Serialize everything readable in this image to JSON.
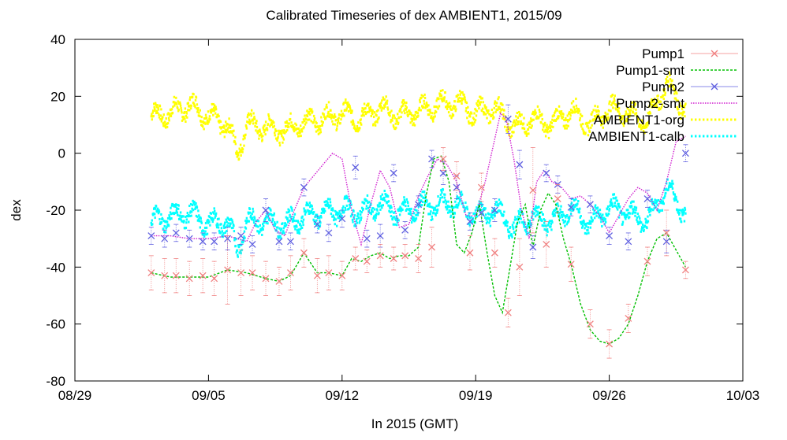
{
  "chart_data": {
    "type": "line",
    "title": "Calibrated Timeseries of dex AMBIENT1, 2015/09",
    "xlabel": "In 2015 (GMT)",
    "ylabel": "dex",
    "xlim": [
      "08/29",
      "10/03"
    ],
    "ylim": [
      -80,
      40
    ],
    "x_ticks": [
      "08/29",
      "09/05",
      "09/12",
      "09/19",
      "09/26",
      "10/03"
    ],
    "y_ticks": [
      -80,
      -60,
      -40,
      -20,
      0,
      20,
      40
    ],
    "grid": false,
    "legend_position": "top-right",
    "series": [
      {
        "name": "Pump1",
        "style": "points-with-errorbars",
        "marker": "x",
        "color": "#f08080",
        "x": [
          "09/02",
          "09/02.7",
          "09/03.3",
          "09/04",
          "09/04.7",
          "09/05.3",
          "09/06",
          "09/06.7",
          "09/07.3",
          "09/08",
          "09/08.7",
          "09/09.3",
          "09/10",
          "09/10.7",
          "09/11.3",
          "09/12",
          "09/12.7",
          "09/13.3",
          "09/14",
          "09/14.7",
          "09/15.3",
          "09/16",
          "09/16.7",
          "09/17.3",
          "09/18",
          "09/18.7",
          "09/19.3",
          "09/20",
          "09/20.7",
          "09/21.3",
          "09/22",
          "09/22.7",
          "09/23.3",
          "09/24",
          "09/25",
          "09/26",
          "09/27",
          "09/28",
          "09/29",
          "09/30"
        ],
        "values": [
          -42,
          -43,
          -43,
          -44,
          -43,
          -44,
          -41,
          -42,
          -42,
          -44,
          -45,
          -42,
          -35,
          -43,
          -42,
          -43,
          -37,
          -38,
          -36,
          -37,
          -36,
          -37,
          -33,
          -2,
          -8,
          -35,
          -12,
          -35,
          -56,
          -40,
          -13,
          -32,
          -16,
          -39,
          -60,
          -67,
          -58,
          -38,
          -28,
          -41
        ],
        "errors": [
          6,
          6,
          6,
          6,
          6,
          6,
          12,
          8,
          6,
          6,
          5,
          6,
          5,
          6,
          6,
          5,
          4,
          4,
          4,
          4,
          4,
          5,
          7,
          4,
          5,
          6,
          5,
          5,
          5,
          10,
          15,
          8,
          5,
          6,
          5,
          5,
          5,
          5,
          8,
          3
        ]
      },
      {
        "name": "Pump1-smt",
        "style": "dashed-line",
        "color": "#00c000",
        "x": [
          "09/02",
          "09/03",
          "09/04",
          "09/05",
          "09/06",
          "09/07",
          "09/08",
          "09/08.7",
          "09/09.3",
          "09/10",
          "09/10.7",
          "09/11.3",
          "09/12",
          "09/12.5",
          "09/13",
          "09/13.5",
          "09/14",
          "09/14.5",
          "09/15",
          "09/15.5",
          "09/16",
          "09/16.4",
          "09/16.8",
          "09/17.2",
          "09/17.6",
          "09/18",
          "09/18.4",
          "09/18.8",
          "09/19.2",
          "09/19.6",
          "09/20",
          "09/20.4",
          "09/20.8",
          "09/21.2",
          "09/21.6",
          "09/22",
          "09/22.4",
          "09/22.8",
          "09/23.2",
          "09/23.6",
          "09/24",
          "09/24.5",
          "09/25",
          "09/25.5",
          "09/26",
          "09/26.5",
          "09/27",
          "09/27.5",
          "09/28",
          "09/28.5",
          "09/29",
          "09/29.5",
          "09/30"
        ],
        "values": [
          -42,
          -43.5,
          -43.5,
          -43.5,
          -41,
          -42,
          -44,
          -45,
          -43,
          -35,
          -42,
          -42,
          -43,
          -37,
          -38,
          -36,
          -35,
          -37,
          -36,
          -36,
          -33,
          -15,
          -2,
          -1,
          -10,
          -32,
          -35,
          -28,
          -18,
          -35,
          -50,
          -56,
          -40,
          -24,
          -18,
          -33,
          -20,
          -14,
          -18,
          -30,
          -39,
          -53,
          -62,
          -66,
          -67,
          -65,
          -60,
          -50,
          -38,
          -30,
          -28,
          -34,
          -40
        ]
      },
      {
        "name": "Pump2",
        "style": "points-with-errorbars",
        "marker": "x",
        "color": "#6060e0",
        "x": [
          "09/02",
          "09/02.7",
          "09/03.3",
          "09/04",
          "09/04.7",
          "09/05.3",
          "09/06",
          "09/06.7",
          "09/07.3",
          "09/08",
          "09/08.7",
          "09/09.3",
          "09/10",
          "09/10.7",
          "09/11.3",
          "09/12",
          "09/12.7",
          "09/13.3",
          "09/14",
          "09/14.7",
          "09/15.3",
          "09/16",
          "09/16.7",
          "09/17.3",
          "09/18",
          "09/18.7",
          "09/19.3",
          "09/20",
          "09/20.7",
          "09/21.3",
          "09/22",
          "09/22.7",
          "09/23.3",
          "09/24",
          "09/25",
          "09/26",
          "09/27",
          "09/28",
          "09/29",
          "09/30"
        ],
        "values": [
          -29,
          -30,
          -28,
          -30,
          -31,
          -31,
          -30,
          -29,
          -32,
          -20,
          -31,
          -31,
          -12,
          -25,
          -28,
          -23,
          -5,
          -30,
          -29,
          -7,
          -27,
          -18,
          -2,
          -7,
          -12,
          -24,
          -21,
          -20,
          12,
          -4,
          -33,
          -7,
          -11,
          -19,
          -18,
          -29,
          -31,
          -16,
          -31,
          0
        ],
        "errors": [
          3,
          3,
          3,
          3,
          3,
          3,
          4,
          3,
          3,
          4,
          3,
          3,
          3,
          3,
          3,
          3,
          4,
          3,
          4,
          3,
          3,
          3,
          3,
          4,
          4,
          3,
          3,
          4,
          5,
          5,
          4,
          3,
          3,
          3,
          3,
          3,
          3,
          3,
          4,
          3
        ]
      },
      {
        "name": "Pump2-smt",
        "style": "dotted-line",
        "color": "#d020d0",
        "x": [
          "09/02",
          "09/03",
          "09/04",
          "09/05",
          "09/06",
          "09/06.5",
          "09/07",
          "09/07.5",
          "09/08",
          "09/08.5",
          "09/09",
          "09/09.5",
          "09/10",
          "09/10.5",
          "09/11",
          "09/11.5",
          "09/12",
          "09/12.5",
          "09/13",
          "09/13.5",
          "09/14",
          "09/14.5",
          "09/15",
          "09/15.5",
          "09/16",
          "09/16.5",
          "09/17",
          "09/17.5",
          "09/18",
          "09/18.5",
          "09/19",
          "09/19.5",
          "09/20",
          "09/20.3",
          "09/20.6",
          "09/21",
          "09/21.4",
          "09/21.8",
          "09/22.2",
          "09/22.6",
          "09/23",
          "09/23.5",
          "09/24",
          "09/24.5",
          "09/25",
          "09/25.5",
          "09/26",
          "09/26.5",
          "09/27",
          "09/27.5",
          "09/28",
          "09/28.5",
          "09/29",
          "09/29.5",
          "09/30"
        ],
        "values": [
          -29,
          -29,
          -30,
          -30,
          -29,
          -30,
          -31,
          -24,
          -20,
          -27,
          -29,
          -20,
          -12,
          -8,
          -4,
          0,
          -2,
          -20,
          -32,
          -18,
          -6,
          -12,
          -26,
          -25,
          -15,
          -8,
          -2,
          -4,
          -10,
          -22,
          -22,
          -10,
          5,
          14,
          12,
          -2,
          -20,
          -30,
          -10,
          -6,
          -10,
          -12,
          -16,
          -15,
          -18,
          -22,
          -28,
          -22,
          -16,
          -12,
          -14,
          -20,
          -10,
          4,
          6
        ]
      },
      {
        "name": "AMBIENT1-org",
        "style": "dense-points",
        "color": "#ffff00",
        "approx_profile_x": [
          "09/02",
          "09/03",
          "09/04",
          "09/05",
          "09/06",
          "09/06.5",
          "09/07",
          "09/08",
          "09/09",
          "09/10",
          "09/11",
          "09/12",
          "09/13",
          "09/14",
          "09/15",
          "09/16",
          "09/17",
          "09/18",
          "09/19",
          "09/20",
          "09/21",
          "09/22",
          "09/23",
          "09/24",
          "09/25",
          "09/26",
          "09/27",
          "09/28",
          "09/29",
          "09/30"
        ],
        "approx_profile_values": [
          13,
          14,
          17,
          13,
          10,
          0,
          10,
          9,
          8,
          11,
          12,
          14,
          12,
          16,
          13,
          15,
          17,
          18,
          14,
          16,
          9,
          12,
          10,
          15,
          10,
          16,
          14,
          11,
          25,
          15
        ]
      },
      {
        "name": "AMBIENT1-calb",
        "style": "dense-points",
        "color": "#00ffff",
        "approx_profile_x": [
          "09/02",
          "09/03",
          "09/04",
          "09/05",
          "09/06",
          "09/06.5",
          "09/07",
          "09/08",
          "09/09",
          "09/10",
          "09/11",
          "09/12",
          "09/13",
          "09/14",
          "09/15",
          "09/16",
          "09/17",
          "09/18",
          "09/19",
          "09/20",
          "09/21",
          "09/22",
          "09/23",
          "09/24",
          "09/25",
          "09/26",
          "09/27",
          "09/28",
          "09/29",
          "09/30"
        ],
        "approx_profile_values": [
          -24,
          -22,
          -21,
          -25,
          -24,
          -34,
          -24,
          -24,
          -25,
          -22,
          -21,
          -20,
          -21,
          -18,
          -21,
          -19,
          -18,
          -18,
          -22,
          -20,
          -26,
          -22,
          -24,
          -19,
          -25,
          -19,
          -21,
          -24,
          -12,
          -21
        ]
      }
    ]
  }
}
